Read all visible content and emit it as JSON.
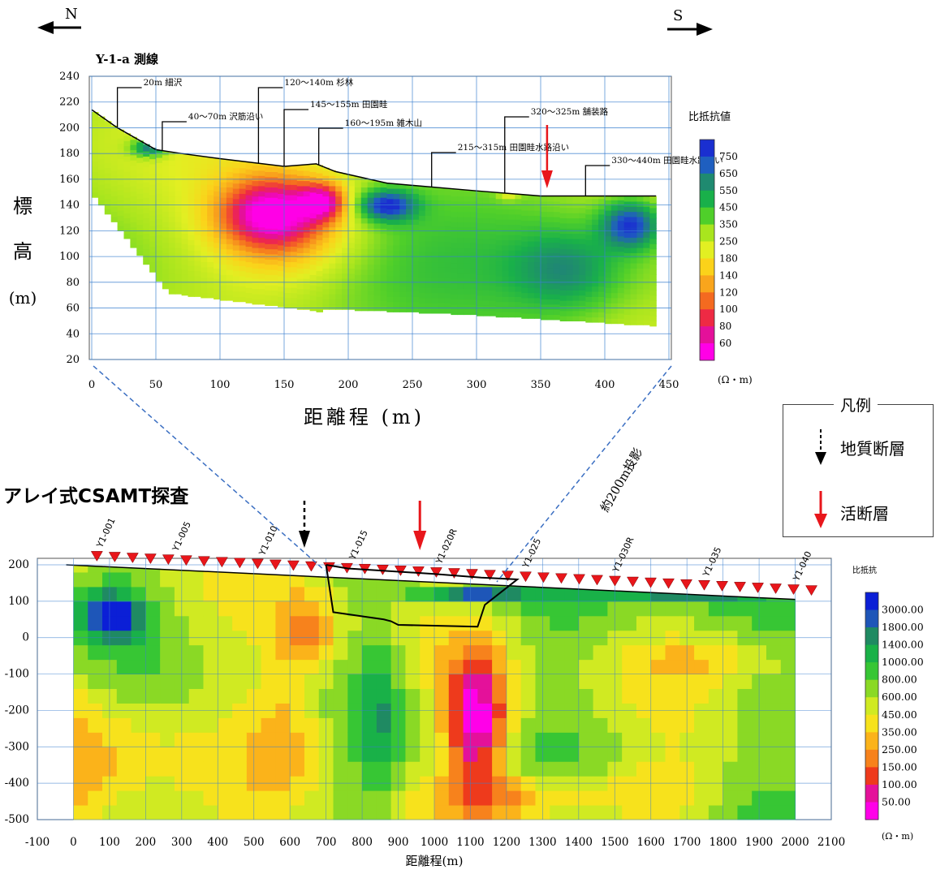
{
  "direction": {
    "north": "N",
    "south": "S"
  },
  "heading_csamt": "アレイ式CSAMT探査",
  "legend": {
    "title": "凡例",
    "geologic_fault": "地質断層",
    "active_fault": "活断層"
  },
  "projection_note": "約200m投影",
  "chart_data": [
    {
      "type": "heatmap",
      "title": "Y-1-a 測線",
      "xlabel": "距離程 (m)",
      "ylabel_chars": [
        "標",
        "高",
        "(m)"
      ],
      "xlim": [
        0,
        450
      ],
      "ylim": [
        20,
        240
      ],
      "x_ticks": [
        0,
        50,
        100,
        150,
        200,
        250,
        300,
        350,
        400,
        450
      ],
      "y_ticks": [
        20,
        40,
        60,
        80,
        100,
        120,
        140,
        160,
        180,
        200,
        220,
        240
      ],
      "colorbar_title": "比抵抗値",
      "colorbar_unit": "(Ω・m)",
      "colorbar_values": [
        "750",
        "650",
        "550",
        "450",
        "350",
        "250",
        "180",
        "140",
        "120",
        "100",
        "80",
        "60"
      ],
      "colorbar_colors": [
        "#1a2fd0",
        "#1f5fc0",
        "#1f8a70",
        "#19b04a",
        "#4fcf2a",
        "#a9e51e",
        "#e2ef22",
        "#fbd21a",
        "#f9a51c",
        "#f46a20",
        "#ee2a44",
        "#e4109a",
        "#ff00e6"
      ],
      "surface_profile": [
        [
          0,
          214
        ],
        [
          20,
          200
        ],
        [
          50,
          183
        ],
        [
          70,
          180
        ],
        [
          100,
          176
        ],
        [
          150,
          170
        ],
        [
          175,
          172
        ],
        [
          190,
          166
        ],
        [
          230,
          157
        ],
        [
          300,
          151
        ],
        [
          350,
          147
        ],
        [
          440,
          147
        ]
      ],
      "annotations": [
        {
          "x": 20,
          "text": "20m 細沢"
        },
        {
          "x": 55,
          "text": "40〜70m 沢筋沿い"
        },
        {
          "x": 130,
          "text": "120〜140m 杉林"
        },
        {
          "x": 150,
          "text": "145〜155m 田園畦"
        },
        {
          "x": 177,
          "text": "160〜195m 雑木山"
        },
        {
          "x": 265,
          "text": "215〜315m 田園畦水路沿い"
        },
        {
          "x": 322,
          "text": "320〜325m 舗装路"
        },
        {
          "x": 385,
          "text": "330〜440m 田園畦水路沿い"
        }
      ],
      "active_fault_x": 355
    },
    {
      "type": "heatmap",
      "xlabel": "距離程(m)",
      "xlim": [
        -100,
        2100
      ],
      "ylim": [
        -500,
        200
      ],
      "x_ticks": [
        -100,
        0,
        100,
        200,
        300,
        400,
        500,
        600,
        700,
        800,
        900,
        1000,
        1100,
        1200,
        1300,
        1400,
        1500,
        1600,
        1700,
        1800,
        1900,
        2000,
        2100
      ],
      "y_ticks": [
        200,
        100,
        0,
        -100,
        -200,
        -300,
        -400,
        -500
      ],
      "colorbar_title": "比抵抗",
      "colorbar_unit": "(Ω・m)",
      "colorbar_values": [
        "3000.00",
        "1800.00",
        "1400.00",
        "1000.00",
        "800.00",
        "600.00",
        "450.00",
        "350.00",
        "250.00",
        "150.00",
        "100.00",
        "50.00"
      ],
      "colorbar_colors": [
        "#0b1fd6",
        "#1e56b8",
        "#1f8a62",
        "#19b148",
        "#37c634",
        "#8ad925",
        "#d0ea22",
        "#f7e21c",
        "#fbb31a",
        "#f7821c",
        "#ee3a1c",
        "#e4119a",
        "#ff00e8"
      ],
      "station_labels": [
        {
          "x": 70,
          "text": "Y1-001"
        },
        {
          "x": 280,
          "text": "Y1-005"
        },
        {
          "x": 520,
          "text": "Y1-010"
        },
        {
          "x": 770,
          "text": "Y1-015"
        },
        {
          "x": 1010,
          "text": "Y1-020R"
        },
        {
          "x": 1250,
          "text": "Y1-025"
        },
        {
          "x": 1500,
          "text": "Y1-030R"
        },
        {
          "x": 1750,
          "text": "Y1-035"
        },
        {
          "x": 2000,
          "text": "Y1-040"
        }
      ],
      "geologic_fault_x": 640,
      "active_fault_x": 960
    }
  ],
  "colors": {
    "grid": "#3a7fcf",
    "fault_active": "#e8161b",
    "fault_geologic": "#000000",
    "projection_line": "#3b6fc2"
  }
}
